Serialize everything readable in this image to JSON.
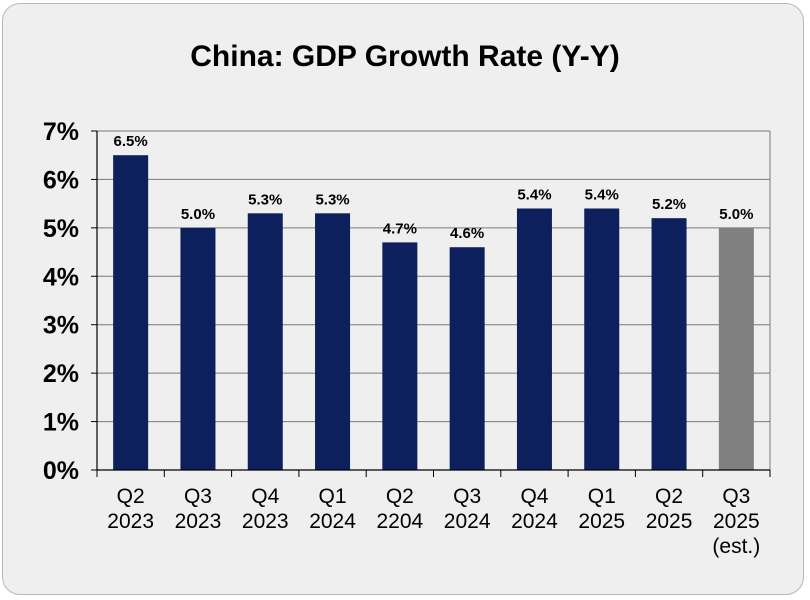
{
  "chart_data": {
    "type": "bar",
    "title": "China: GDP Growth Rate (Y-Y)",
    "xlabel": "",
    "ylabel": "",
    "categories": [
      [
        "Q2",
        "2023"
      ],
      [
        "Q3",
        "2023"
      ],
      [
        "Q4",
        "2023"
      ],
      [
        "Q1",
        "2024"
      ],
      [
        "Q2",
        "2204"
      ],
      [
        "Q3",
        "2024"
      ],
      [
        "Q4",
        "2024"
      ],
      [
        "Q1",
        "2025"
      ],
      [
        "Q2",
        "2025"
      ],
      [
        "Q3",
        "2025",
        "(est.)"
      ]
    ],
    "values": [
      6.5,
      5.0,
      5.3,
      5.3,
      4.7,
      4.6,
      5.4,
      5.4,
      5.2,
      5.0
    ],
    "data_labels": [
      "6.5%",
      "5.0%",
      "5.3%",
      "5.3%",
      "4.7%",
      "4.6%",
      "5.4%",
      "5.4%",
      "5.2%",
      "5.0%"
    ],
    "bar_colors": [
      "#0d1f5c",
      "#0d1f5c",
      "#0d1f5c",
      "#0d1f5c",
      "#0d1f5c",
      "#0d1f5c",
      "#0d1f5c",
      "#0d1f5c",
      "#0d1f5c",
      "#808080"
    ],
    "ylim": [
      0,
      7
    ],
    "yticks": [
      0,
      1,
      2,
      3,
      4,
      5,
      6,
      7
    ],
    "ytick_labels": [
      "0%",
      "1%",
      "2%",
      "3%",
      "4%",
      "5%",
      "6%",
      "7%"
    ],
    "grid": true,
    "colors": {
      "background": "#efefef",
      "bar": "#0d1f5c",
      "estimate_bar": "#808080",
      "grid": "#7a7a7a"
    }
  }
}
